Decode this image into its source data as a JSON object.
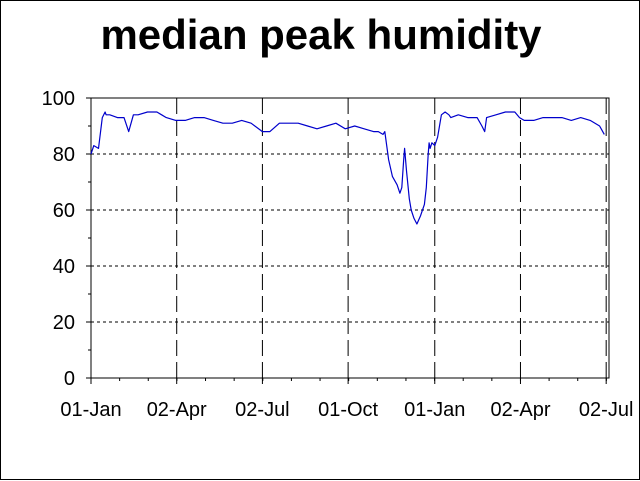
{
  "chart_data": {
    "type": "line",
    "title": "median peak humidity",
    "xlabel": "",
    "ylabel": "",
    "ylim": [
      0,
      100
    ],
    "y_ticks": [
      "0",
      "20",
      "40",
      "60",
      "80",
      "100"
    ],
    "x_tick_labels": [
      "01-Jan",
      "02-Apr",
      "02-Jul",
      "01-Oct",
      "01-Jan",
      "02-Apr",
      "02-Jul"
    ],
    "x_tick_days": [
      0,
      91,
      182,
      273,
      365,
      456,
      547
    ],
    "xlim_days": [
      0,
      550
    ],
    "grid": true,
    "line_color": "#0000cc",
    "series": [
      {
        "x_days": [
          0,
          3,
          8,
          12,
          15,
          16,
          20,
          28,
          35,
          40,
          45,
          47,
          50,
          60,
          70,
          75,
          80,
          90,
          100,
          110,
          120,
          130,
          140,
          150,
          160,
          170,
          182,
          190,
          200,
          210,
          220,
          230,
          240,
          250,
          260,
          270,
          280,
          290,
          300,
          305,
          310,
          312,
          316,
          320,
          325,
          328,
          330,
          332,
          333,
          335,
          338,
          340,
          343,
          346,
          350,
          352,
          354,
          356,
          358,
          359,
          360,
          362,
          365,
          368,
          372,
          376,
          380,
          382,
          390,
          400,
          410,
          415,
          418,
          420,
          430,
          440,
          450,
          455,
          460,
          470,
          480,
          490,
          500,
          510,
          520,
          530,
          540,
          545
        ],
        "y": [
          80,
          83,
          82,
          93,
          95,
          94,
          94,
          93,
          93,
          88,
          94,
          94,
          94,
          95,
          95,
          94,
          93,
          92,
          92,
          93,
          93,
          92,
          91,
          91,
          92,
          91,
          88,
          88,
          91,
          91,
          91,
          90,
          89,
          90,
          91,
          89,
          90,
          89,
          88,
          88,
          87,
          88,
          78,
          72,
          69,
          66,
          68,
          78,
          82,
          74,
          64,
          60,
          57,
          55,
          58,
          60,
          62,
          68,
          80,
          84,
          82,
          84,
          83,
          86,
          94,
          95,
          94,
          93,
          94,
          93,
          93,
          90,
          88,
          93,
          94,
          95,
          95,
          93,
          92,
          92,
          93,
          93,
          93,
          92,
          93,
          92,
          90,
          87
        ]
      }
    ]
  }
}
